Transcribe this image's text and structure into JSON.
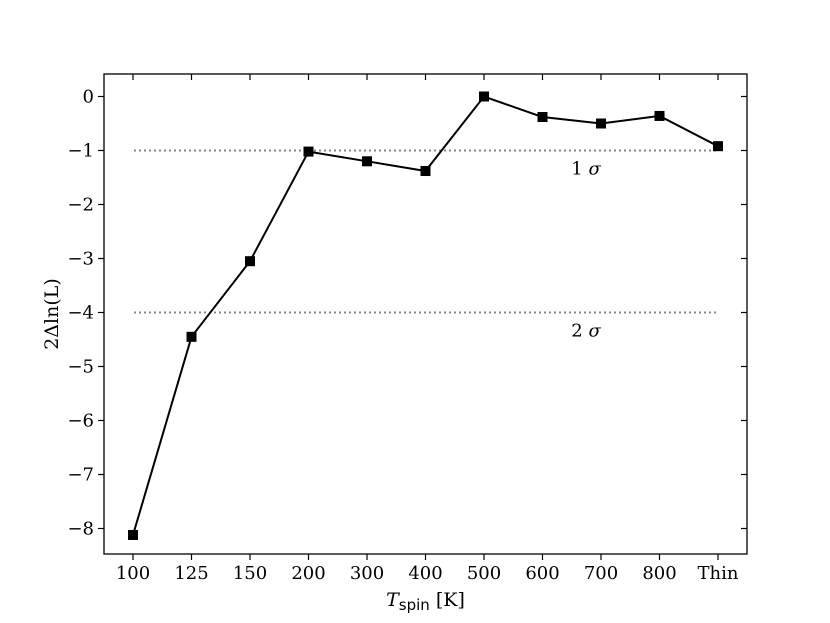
{
  "chart_data": {
    "type": "line",
    "categories": [
      "100",
      "125",
      "150",
      "200",
      "300",
      "400",
      "500",
      "600",
      "700",
      "800",
      "Thin"
    ],
    "values": [
      -8.12,
      -4.45,
      -3.05,
      -1.02,
      -1.2,
      -1.38,
      0.0,
      -0.38,
      -0.5,
      -0.36,
      -0.92
    ],
    "ylim": [
      -8.4,
      0.4
    ],
    "yticks": [
      0,
      -1,
      -2,
      -3,
      -4,
      -5,
      -6,
      -7,
      -8
    ],
    "ytick_labels": [
      "0",
      "−1",
      "−2",
      "−3",
      "−4",
      "−5",
      "−6",
      "−7",
      "−8"
    ],
    "ylabel": "2Δln(L)",
    "xlabel": {
      "symbol": "T",
      "subscript": "spin",
      "unit": "[K]"
    },
    "marker": "square",
    "line_color": "#000000",
    "reference_lines": [
      {
        "y": -1,
        "label_number": "1",
        "label_symbol": "σ",
        "color": "#888888",
        "style": "dotted"
      },
      {
        "y": -4,
        "label_number": "2",
        "label_symbol": "σ",
        "color": "#888888",
        "style": "dotted"
      }
    ]
  }
}
